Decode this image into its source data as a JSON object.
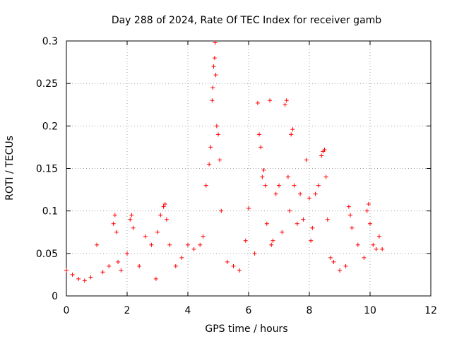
{
  "chart_data": {
    "type": "scatter",
    "title": "Day 288 of 2024, Rate Of TEC Index for receiver gamb",
    "xlabel": "GPS time / hours",
    "ylabel": "ROTI / TECUs",
    "xlim": [
      0,
      12
    ],
    "ylim": [
      0,
      0.3
    ],
    "xticks": [
      0,
      2,
      4,
      6,
      8,
      10,
      12
    ],
    "yticks": [
      0,
      0.05,
      0.1,
      0.15,
      0.2,
      0.25,
      0.3
    ],
    "xtick_labels": [
      "0",
      "2",
      "4",
      "6",
      "8",
      "10",
      "12"
    ],
    "ytick_labels": [
      "0",
      "0.05",
      "0.1",
      "0.15",
      "0.2",
      "0.25",
      "0.3"
    ],
    "grid": true,
    "marker": "+",
    "color": "#ff0000",
    "series": [
      {
        "name": "gamb",
        "x": [
          0.0,
          0.2,
          0.4,
          0.6,
          0.8,
          1.0,
          1.2,
          1.4,
          1.55,
          1.6,
          1.65,
          1.7,
          1.8,
          2.0,
          2.1,
          2.15,
          2.2,
          2.4,
          2.6,
          2.8,
          2.95,
          3.0,
          3.1,
          3.2,
          3.25,
          3.3,
          3.4,
          3.6,
          3.8,
          4.0,
          4.2,
          4.4,
          4.5,
          4.6,
          4.7,
          4.75,
          4.8,
          4.82,
          4.85,
          4.88,
          4.9,
          4.92,
          4.95,
          5.0,
          5.05,
          5.1,
          5.3,
          5.5,
          5.7,
          5.9,
          6.0,
          6.2,
          6.3,
          6.35,
          6.4,
          6.45,
          6.5,
          6.55,
          6.6,
          6.7,
          6.75,
          6.8,
          6.9,
          7.0,
          7.1,
          7.2,
          7.25,
          7.3,
          7.35,
          7.4,
          7.45,
          7.5,
          7.6,
          7.7,
          7.8,
          7.9,
          8.0,
          8.05,
          8.1,
          8.2,
          8.3,
          8.4,
          8.45,
          8.5,
          8.55,
          8.6,
          8.7,
          8.8,
          9.0,
          9.2,
          9.3,
          9.35,
          9.4,
          9.6,
          9.8,
          9.9,
          9.95,
          10.0,
          10.1,
          10.2,
          10.3,
          10.4
        ],
        "y": [
          0.03,
          0.025,
          0.02,
          0.018,
          0.022,
          0.06,
          0.028,
          0.035,
          0.085,
          0.095,
          0.075,
          0.04,
          0.03,
          0.05,
          0.09,
          0.095,
          0.08,
          0.035,
          0.07,
          0.06,
          0.02,
          0.075,
          0.095,
          0.105,
          0.108,
          0.09,
          0.06,
          0.035,
          0.045,
          0.06,
          0.055,
          0.06,
          0.07,
          0.13,
          0.155,
          0.175,
          0.23,
          0.245,
          0.27,
          0.28,
          0.298,
          0.26,
          0.2,
          0.19,
          0.16,
          0.1,
          0.04,
          0.035,
          0.03,
          0.065,
          0.103,
          0.05,
          0.227,
          0.19,
          0.175,
          0.14,
          0.148,
          0.13,
          0.085,
          0.23,
          0.06,
          0.065,
          0.12,
          0.13,
          0.075,
          0.225,
          0.23,
          0.14,
          0.1,
          0.19,
          0.196,
          0.13,
          0.085,
          0.12,
          0.09,
          0.16,
          0.115,
          0.065,
          0.08,
          0.12,
          0.13,
          0.165,
          0.17,
          0.172,
          0.14,
          0.09,
          0.045,
          0.04,
          0.03,
          0.035,
          0.105,
          0.095,
          0.08,
          0.06,
          0.045,
          0.1,
          0.108,
          0.085,
          0.06,
          0.055,
          0.07,
          0.055
        ]
      }
    ]
  }
}
